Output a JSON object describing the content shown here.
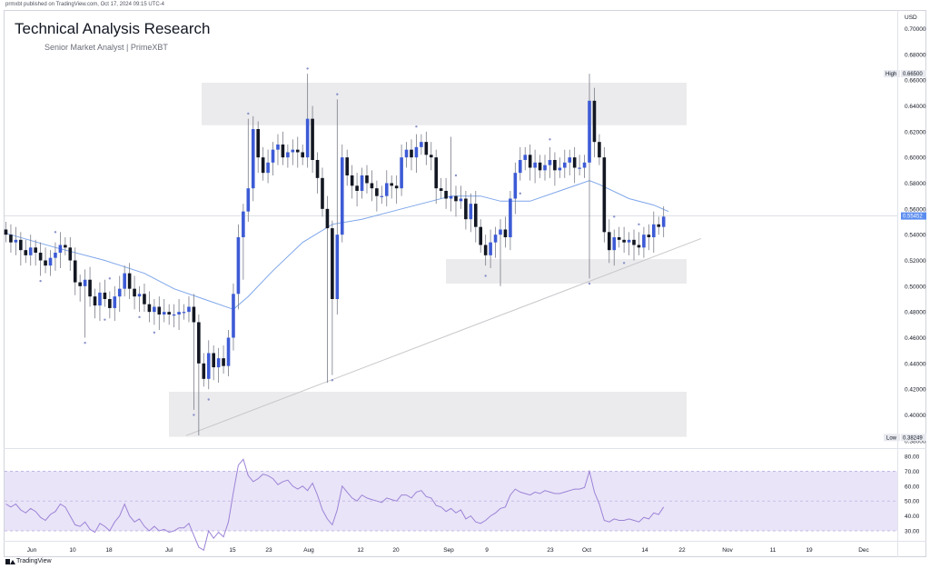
{
  "publish_line": "prmxbt published on TradingView.com, Oct 17, 2024 09:15 UTC-4",
  "title": "Technical Analysis Research",
  "subtitle": "Senior Market Analyst | PrimeXBT",
  "footer": "TradingView",
  "colors": {
    "bull": "#3d5bd6",
    "bear": "#131722",
    "ma": "#7ea6ea",
    "rsi": "#9c83d6",
    "band": "#e9e4f8",
    "zone": "#ebebed",
    "trend": "#c8c8cc",
    "price_tag": "#5b8def"
  },
  "chart_data": {
    "type": "candlestick",
    "currency": "USD",
    "price_ticks": [
      "0.70000",
      "0.68000",
      "0.66000",
      "0.64000",
      "0.62000",
      "0.60000",
      "0.58000",
      "0.56000",
      "0.54000",
      "0.52000",
      "0.50000",
      "0.48000",
      "0.46000",
      "0.44000",
      "0.42000",
      "0.40000",
      "0.38000"
    ],
    "ylim": [
      0.375,
      0.715
    ],
    "x_ticks": [
      "Jun",
      "10",
      "18",
      "Jul",
      "15",
      "23",
      "Aug",
      "12",
      "20",
      "Sep",
      "9",
      "23",
      "Oct",
      "14",
      "22",
      "Nov",
      "11",
      "19",
      "Dec"
    ],
    "high_label": "High",
    "high_value": "0.66500",
    "low_label": "Low",
    "low_value": "0.38249",
    "last_price": "0.55452",
    "rsi_ticks": [
      "80.00",
      "70.00",
      "60.00",
      "50.00",
      "40.00",
      "30.00"
    ],
    "rsi_levels": {
      "upper": 70,
      "middle": 50,
      "lower": 30
    },
    "closes": [
      0.54,
      0.534,
      0.536,
      0.528,
      0.524,
      0.53,
      0.526,
      0.52,
      0.516,
      0.522,
      0.526,
      0.532,
      0.53,
      0.52,
      0.503,
      0.5,
      0.505,
      0.492,
      0.485,
      0.495,
      0.49,
      0.483,
      0.492,
      0.498,
      0.51,
      0.498,
      0.492,
      0.494,
      0.486,
      0.48,
      0.484,
      0.478,
      0.48,
      0.478,
      0.478,
      0.48,
      0.48,
      0.484,
      0.472,
      0.44,
      0.428,
      0.448,
      0.437,
      0.444,
      0.438,
      0.46,
      0.494,
      0.538,
      0.558,
      0.576,
      0.622,
      0.6,
      0.588,
      0.596,
      0.606,
      0.61,
      0.6,
      0.604,
      0.606,
      0.604,
      0.6,
      0.63,
      0.598,
      0.584,
      0.56,
      0.545,
      0.49,
      0.54,
      0.6,
      0.586,
      0.578,
      0.574,
      0.586,
      0.58,
      0.576,
      0.57,
      0.57,
      0.58,
      0.578,
      0.576,
      0.6,
      0.606,
      0.6,
      0.608,
      0.612,
      0.602,
      0.6,
      0.576,
      0.574,
      0.568,
      0.57,
      0.566,
      0.568,
      0.552,
      0.564,
      0.546,
      0.532,
      0.524,
      0.534,
      0.54,
      0.544,
      0.538,
      0.568,
      0.588,
      0.598,
      0.602,
      0.592,
      0.596,
      0.59,
      0.594,
      0.598,
      0.59,
      0.592,
      0.596,
      0.6,
      0.592,
      0.592,
      0.596,
      0.644,
      0.612,
      0.6,
      0.542,
      0.528,
      0.538,
      0.536,
      0.534,
      0.536,
      0.532,
      0.53,
      0.54,
      0.538,
      0.548,
      0.546,
      0.554
    ],
    "ma_points": [
      [
        0,
        0.541
      ],
      [
        10,
        0.53
      ],
      [
        20,
        0.52
      ],
      [
        28,
        0.51
      ],
      [
        34,
        0.498
      ],
      [
        40,
        0.49
      ],
      [
        46,
        0.482
      ],
      [
        49,
        0.492
      ],
      [
        54,
        0.512
      ],
      [
        60,
        0.534
      ],
      [
        66,
        0.548
      ],
      [
        72,
        0.552
      ],
      [
        78,
        0.558
      ],
      [
        84,
        0.564
      ],
      [
        90,
        0.57
      ],
      [
        96,
        0.57
      ],
      [
        100,
        0.566
      ],
      [
        106,
        0.566
      ],
      [
        112,
        0.574
      ],
      [
        118,
        0.582
      ],
      [
        120,
        0.579
      ],
      [
        126,
        0.568
      ],
      [
        131,
        0.563
      ],
      [
        134,
        0.558
      ]
    ],
    "rsi": [
      48,
      46,
      48,
      44,
      42,
      45,
      43,
      39,
      37,
      41,
      43,
      48,
      46,
      40,
      34,
      33,
      36,
      31,
      29,
      35,
      33,
      30,
      36,
      40,
      48,
      40,
      36,
      38,
      33,
      30,
      33,
      30,
      31,
      29,
      30,
      32,
      32,
      35,
      27,
      19,
      17,
      30,
      25,
      29,
      26,
      36,
      56,
      74,
      78,
      67,
      63,
      65,
      68,
      67,
      65,
      61,
      63,
      64,
      60,
      58,
      60,
      57,
      62,
      54,
      44,
      38,
      34,
      44,
      60,
      56,
      52,
      50,
      54,
      52,
      51,
      50,
      49,
      52,
      51,
      50,
      54,
      54,
      52,
      56,
      57,
      53,
      52,
      47,
      46,
      43,
      45,
      42,
      44,
      38,
      40,
      36,
      35,
      37,
      40,
      42,
      45,
      46,
      54,
      58,
      56,
      55,
      54,
      56,
      55,
      57,
      56,
      55,
      55,
      56,
      57,
      58,
      58,
      59,
      70,
      56,
      48,
      37,
      36,
      38,
      37,
      37,
      38,
      37,
      36,
      39,
      38,
      42,
      41,
      46
    ]
  }
}
